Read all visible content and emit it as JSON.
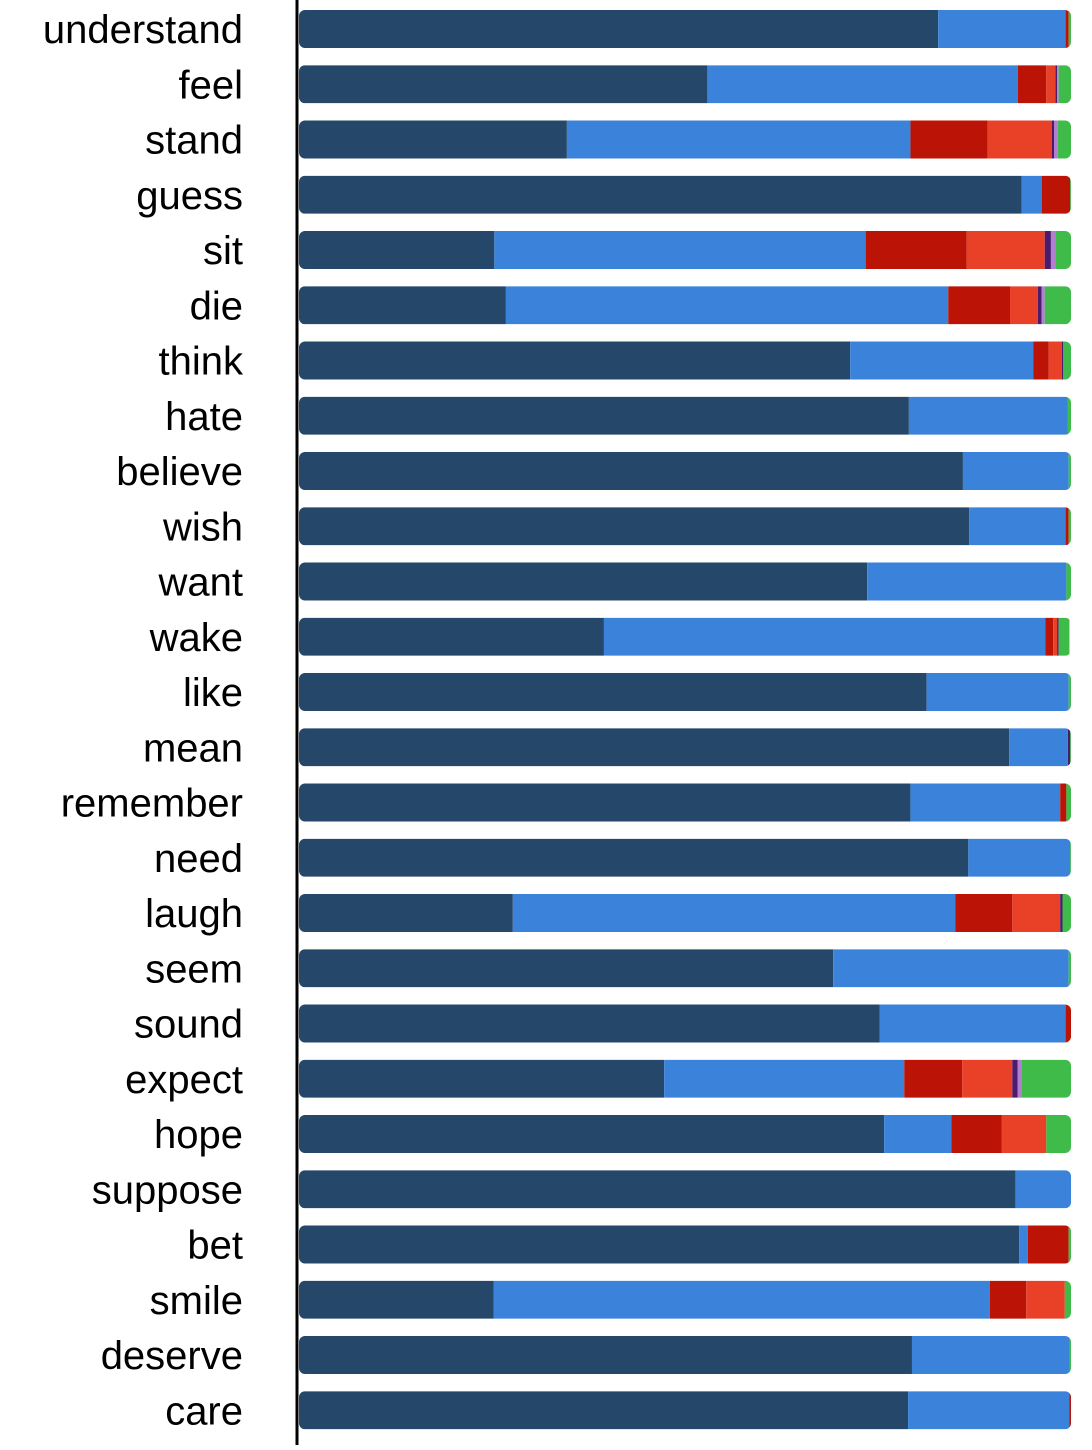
{
  "chart_data": {
    "type": "bar",
    "orientation": "horizontal",
    "stacked": true,
    "normalized": true,
    "title": "",
    "xlabel": "",
    "ylabel": "",
    "xlim": [
      0,
      1
    ],
    "grid": false,
    "legend": "none",
    "categories": [
      "understand",
      "feel",
      "stand",
      "guess",
      "sit",
      "die",
      "think",
      "hate",
      "believe",
      "wish",
      "want",
      "wake",
      "like",
      "mean",
      "remember",
      "need",
      "laugh",
      "seem",
      "sound",
      "expect",
      "hope",
      "suppose",
      "bet",
      "smile",
      "deserve",
      "care"
    ],
    "series": [
      {
        "color": "#25476a",
        "values": [
          0.828,
          0.529,
          0.347,
          0.936,
          0.253,
          0.268,
          0.714,
          0.79,
          0.86,
          0.868,
          0.736,
          0.395,
          0.813,
          0.92,
          0.792,
          0.867,
          0.277,
          0.692,
          0.752,
          0.473,
          0.758,
          0.928,
          0.933,
          0.252,
          0.794,
          0.789
        ]
      },
      {
        "color": "#3b82db",
        "values": [
          0.165,
          0.402,
          0.445,
          0.026,
          0.481,
          0.573,
          0.237,
          0.206,
          0.137,
          0.125,
          0.258,
          0.572,
          0.184,
          0.076,
          0.194,
          0.132,
          0.573,
          0.305,
          0.241,
          0.311,
          0.087,
          0.072,
          0.011,
          0.643,
          0.204,
          0.209
        ]
      },
      {
        "color": "#bb1306",
        "values": [
          0.004,
          0.037,
          0.1,
          0.037,
          0.131,
          0.08,
          0.02,
          0.0,
          0.0,
          0.004,
          0.0,
          0.01,
          0.0,
          0.0,
          0.008,
          0.0,
          0.074,
          0.0,
          0.007,
          0.075,
          0.065,
          0.0,
          0.053,
          0.047,
          0.0,
          0.002
        ]
      },
      {
        "color": "#e84128",
        "values": [
          0.0,
          0.012,
          0.083,
          0.0,
          0.101,
          0.036,
          0.017,
          0.0,
          0.0,
          0.0,
          0.0,
          0.005,
          0.0,
          0.0,
          0.0,
          0.0,
          0.062,
          0.0,
          0.0,
          0.065,
          0.058,
          0.0,
          0.0,
          0.05,
          0.0,
          0.0
        ]
      },
      {
        "color": "#4b1c6e",
        "values": [
          0.0,
          0.002,
          0.003,
          0.0,
          0.008,
          0.005,
          0.002,
          0.0,
          0.0,
          0.0,
          0.0,
          0.002,
          0.0,
          0.003,
          0.0,
          0.0,
          0.003,
          0.0,
          0.0,
          0.007,
          0.0,
          0.0,
          0.0,
          0.0,
          0.0,
          0.0
        ]
      },
      {
        "color": "#b27ecf",
        "values": [
          0.0,
          0.002,
          0.005,
          0.0,
          0.006,
          0.004,
          0.0,
          0.0,
          0.0,
          0.0,
          0.0,
          0.0,
          0.0,
          0.0,
          0.0,
          0.0,
          0.0,
          0.0,
          0.0,
          0.005,
          0.0,
          0.0,
          0.0,
          0.0,
          0.0,
          0.0
        ]
      },
      {
        "color": "#3fbb49",
        "values": [
          0.003,
          0.016,
          0.017,
          0.001,
          0.02,
          0.034,
          0.01,
          0.004,
          0.003,
          0.003,
          0.006,
          0.014,
          0.003,
          0.001,
          0.006,
          0.001,
          0.011,
          0.003,
          0.0,
          0.064,
          0.032,
          0.0,
          0.003,
          0.008,
          0.002,
          0.0
        ]
      }
    ]
  }
}
